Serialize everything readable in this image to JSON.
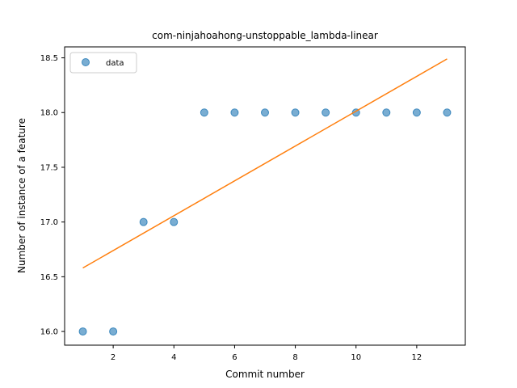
{
  "chart_data": {
    "type": "scatter",
    "title": "com-ninjahoahong-unstoppable_lambda-linear",
    "xlabel": "Commit number",
    "ylabel": "Number of instance of a feature",
    "xlim": [
      0.4,
      13.6
    ],
    "ylim": [
      15.875,
      18.6
    ],
    "xticks": [
      2,
      4,
      6,
      8,
      10,
      12
    ],
    "xtick_labels": [
      "2",
      "4",
      "6",
      "8",
      "10",
      "12"
    ],
    "yticks": [
      16.0,
      16.5,
      17.0,
      17.5,
      18.0,
      18.5
    ],
    "ytick_labels": [
      "16.0",
      "16.5",
      "17.0",
      "17.5",
      "18.0",
      "18.5"
    ],
    "grid": false,
    "legend_position": "top-left",
    "series": [
      {
        "name": "data",
        "kind": "scatter",
        "color": "#1f77b4",
        "x": [
          1,
          2,
          3,
          4,
          5,
          6,
          7,
          8,
          9,
          10,
          11,
          12,
          13
        ],
        "y": [
          16,
          16,
          17,
          17,
          18,
          18,
          18,
          18,
          18,
          18,
          18,
          18,
          18
        ]
      },
      {
        "kind": "line",
        "color": "#ff7f0e",
        "x": [
          1,
          13
        ],
        "y": [
          16.58,
          18.49
        ]
      }
    ]
  }
}
